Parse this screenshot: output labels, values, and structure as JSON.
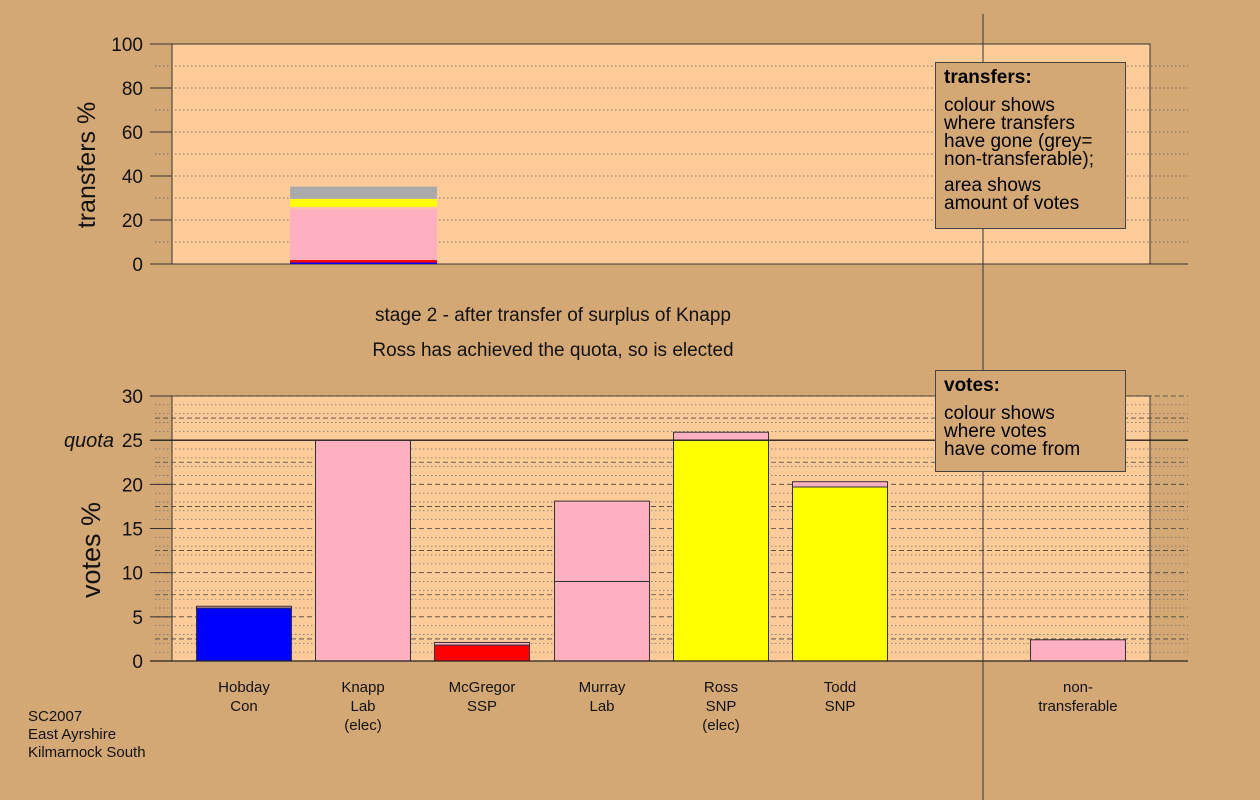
{
  "stage": {
    "line1": "stage 2 - after transfer of surplus of Knapp",
    "line2": "Ross has achieved the quota, so is elected"
  },
  "transfers_box": {
    "heading": "transfers:",
    "lines": [
      "colour shows",
      "where transfers",
      "have gone (grey=",
      "non-transferable);"
    ],
    "lines2": [
      "area shows",
      "amount of votes"
    ]
  },
  "votes_box": {
    "heading": "votes:",
    "lines": [
      "colour shows",
      "where votes",
      "have come from"
    ]
  },
  "footer": {
    "line1": "SC2007",
    "line2": "East Ayrshire",
    "line3": "Kilmarnock South"
  },
  "chart_data": [
    {
      "type": "bar",
      "ylabel": "transfers %",
      "ylim": [
        0,
        100
      ],
      "yticks": [
        0,
        20,
        40,
        60,
        80,
        100
      ],
      "grid": true,
      "bars": [
        {
          "segments": [
            {
              "value": 0.7,
              "color": "#0000ff"
            },
            {
              "value": 1.1,
              "color": "#ff0000"
            },
            {
              "value": 23.0,
              "color": "#ffb0c0"
            },
            {
              "value": 1.2,
              "color": "#ffc0b0"
            },
            {
              "value": 3.0,
              "color": "#ffff00"
            },
            {
              "value": 0.6,
              "color": "#ffff00"
            },
            {
              "value": 5.6,
              "color": "#aaaaaa"
            }
          ]
        }
      ]
    },
    {
      "type": "bar",
      "ylabel": "votes %",
      "ylim": [
        0,
        30
      ],
      "yticks": [
        0,
        5,
        10,
        15,
        20,
        25,
        30
      ],
      "quota": 25,
      "quota_label": "quota",
      "grid": true,
      "candidates": [
        {
          "name": "Hobday",
          "party": "Con",
          "note": "",
          "segments": [
            {
              "value": 6.0,
              "color": "#0000ff"
            },
            {
              "value": 0.2,
              "color": "#ffb0c0"
            }
          ]
        },
        {
          "name": "Knapp",
          "party": "Lab",
          "note": "(elec)",
          "segments": [
            {
              "value": 25.0,
              "color": "#ffb0c0"
            }
          ]
        },
        {
          "name": "McGregor",
          "party": "SSP",
          "note": "",
          "segments": [
            {
              "value": 1.8,
              "color": "#ff0000"
            },
            {
              "value": 0.3,
              "color": "#ffb0c0"
            }
          ]
        },
        {
          "name": "Murray",
          "party": "Lab",
          "note": "",
          "segments": [
            {
              "value": 9.0,
              "color": "#ffb0c0"
            },
            {
              "value": 9.1,
              "color": "#ffb0c0"
            }
          ]
        },
        {
          "name": "Ross",
          "party": "SNP",
          "note": "(elec)",
          "segments": [
            {
              "value": 25.0,
              "color": "#ffff00"
            },
            {
              "value": 0.9,
              "color": "#ffb0c0"
            }
          ]
        },
        {
          "name": "Todd",
          "party": "SNP",
          "note": "",
          "segments": [
            {
              "value": 19.7,
              "color": "#ffff00"
            },
            {
              "value": 0.6,
              "color": "#ffb0c0"
            }
          ]
        },
        {
          "name": "non-",
          "party": "transferable",
          "note": "",
          "segments": [
            {
              "value": 2.4,
              "color": "#ffb0c0"
            }
          ]
        }
      ]
    }
  ],
  "colors": {
    "plot_bg": "#ffcc99",
    "page_bg": "#d4a875"
  }
}
